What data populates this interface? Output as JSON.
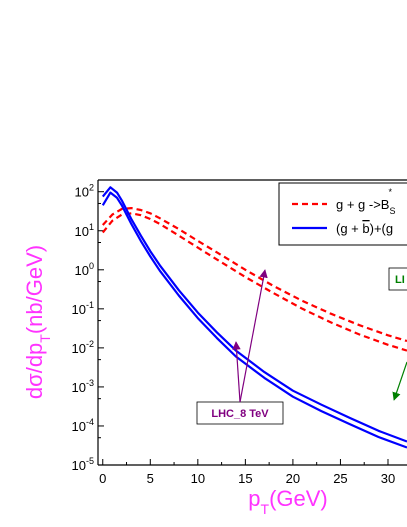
{
  "chart_data": {
    "type": "line",
    "title": "",
    "xlabel": "p",
    "xlabel_sub": "T",
    "xlabel_unit": "(GeV)",
    "ylabel_main": "dσ/dp",
    "ylabel_sub": "T",
    "ylabel_unit": "(nb/GeV)",
    "xlim": [
      -0.5,
      32
    ],
    "ylim_log10": [
      -5,
      2.3
    ],
    "x_ticks": [
      0,
      5,
      10,
      15,
      20,
      25,
      30
    ],
    "x_tick_labels": [
      "0",
      "5",
      "10",
      "15",
      "20",
      "25",
      "30"
    ],
    "y_ticks_log10": [
      -5,
      -4,
      -3,
      -2,
      -1,
      0,
      1,
      2
    ],
    "y_tick_bases": [
      "10",
      "10",
      "10",
      "10",
      "10",
      "10",
      "10",
      "10"
    ],
    "y_tick_exps": [
      "-5",
      "-4",
      "-3",
      "-2",
      "-1",
      "0",
      "1",
      "2"
    ],
    "y_scale": "log",
    "legend": {
      "placement": "top-right",
      "entries": [
        {
          "style": "dashed",
          "color": "#ff0000",
          "label": "g + g ->B",
          "sub": "S",
          "sup": "*"
        },
        {
          "style": "solid",
          "color": "#0000ff",
          "label_a": "(g + ",
          "label_bbar": "b",
          "label_b": ")+(g"
        }
      ]
    },
    "annotations": [
      {
        "text": "LHC_8 TeV",
        "color": "#800080"
      },
      {
        "text": "LI",
        "color": "#008000"
      }
    ],
    "series": [
      {
        "style": "dashed",
        "color": "#ff0000",
        "x": [
          0,
          1,
          2,
          3,
          4,
          5,
          6,
          8,
          10,
          12,
          15,
          18,
          21,
          24,
          27,
          30,
          32
        ],
        "y": [
          14,
          26,
          36,
          38,
          34,
          28,
          21,
          11,
          5.5,
          2.8,
          1.0,
          0.38,
          0.16,
          0.075,
          0.038,
          0.021,
          0.015
        ]
      },
      {
        "style": "dashed",
        "color": "#ff0000",
        "x": [
          0,
          1,
          2,
          3,
          4,
          5,
          6,
          8,
          10,
          12,
          15,
          18,
          21,
          24,
          27,
          30,
          32
        ],
        "y": [
          9,
          18,
          26,
          28,
          25,
          20,
          15,
          7.5,
          3.7,
          1.85,
          0.65,
          0.25,
          0.1,
          0.045,
          0.022,
          0.012,
          0.0085
        ]
      },
      {
        "style": "solid",
        "color": "#0000ff",
        "x": [
          0,
          0.8,
          1.5,
          2,
          3,
          4,
          5,
          6,
          8,
          10,
          12,
          14,
          17,
          20,
          23,
          26,
          29,
          32
        ],
        "y": [
          75,
          130,
          95,
          60,
          20,
          7.5,
          3.0,
          1.3,
          0.3,
          0.08,
          0.025,
          0.0085,
          0.0024,
          0.0008,
          0.00035,
          0.00016,
          7.5e-05,
          4e-05
        ]
      },
      {
        "style": "solid",
        "color": "#0000ff",
        "x": [
          0,
          0.8,
          1.5,
          2,
          3,
          4,
          5,
          6,
          8,
          10,
          12,
          14,
          17,
          20,
          23,
          26,
          29,
          32
        ],
        "y": [
          45,
          95,
          70,
          45,
          15,
          5.5,
          2.2,
          0.95,
          0.22,
          0.058,
          0.018,
          0.006,
          0.0017,
          0.00056,
          0.00024,
          0.00011,
          5.2e-05,
          2.8e-05
        ]
      }
    ]
  }
}
